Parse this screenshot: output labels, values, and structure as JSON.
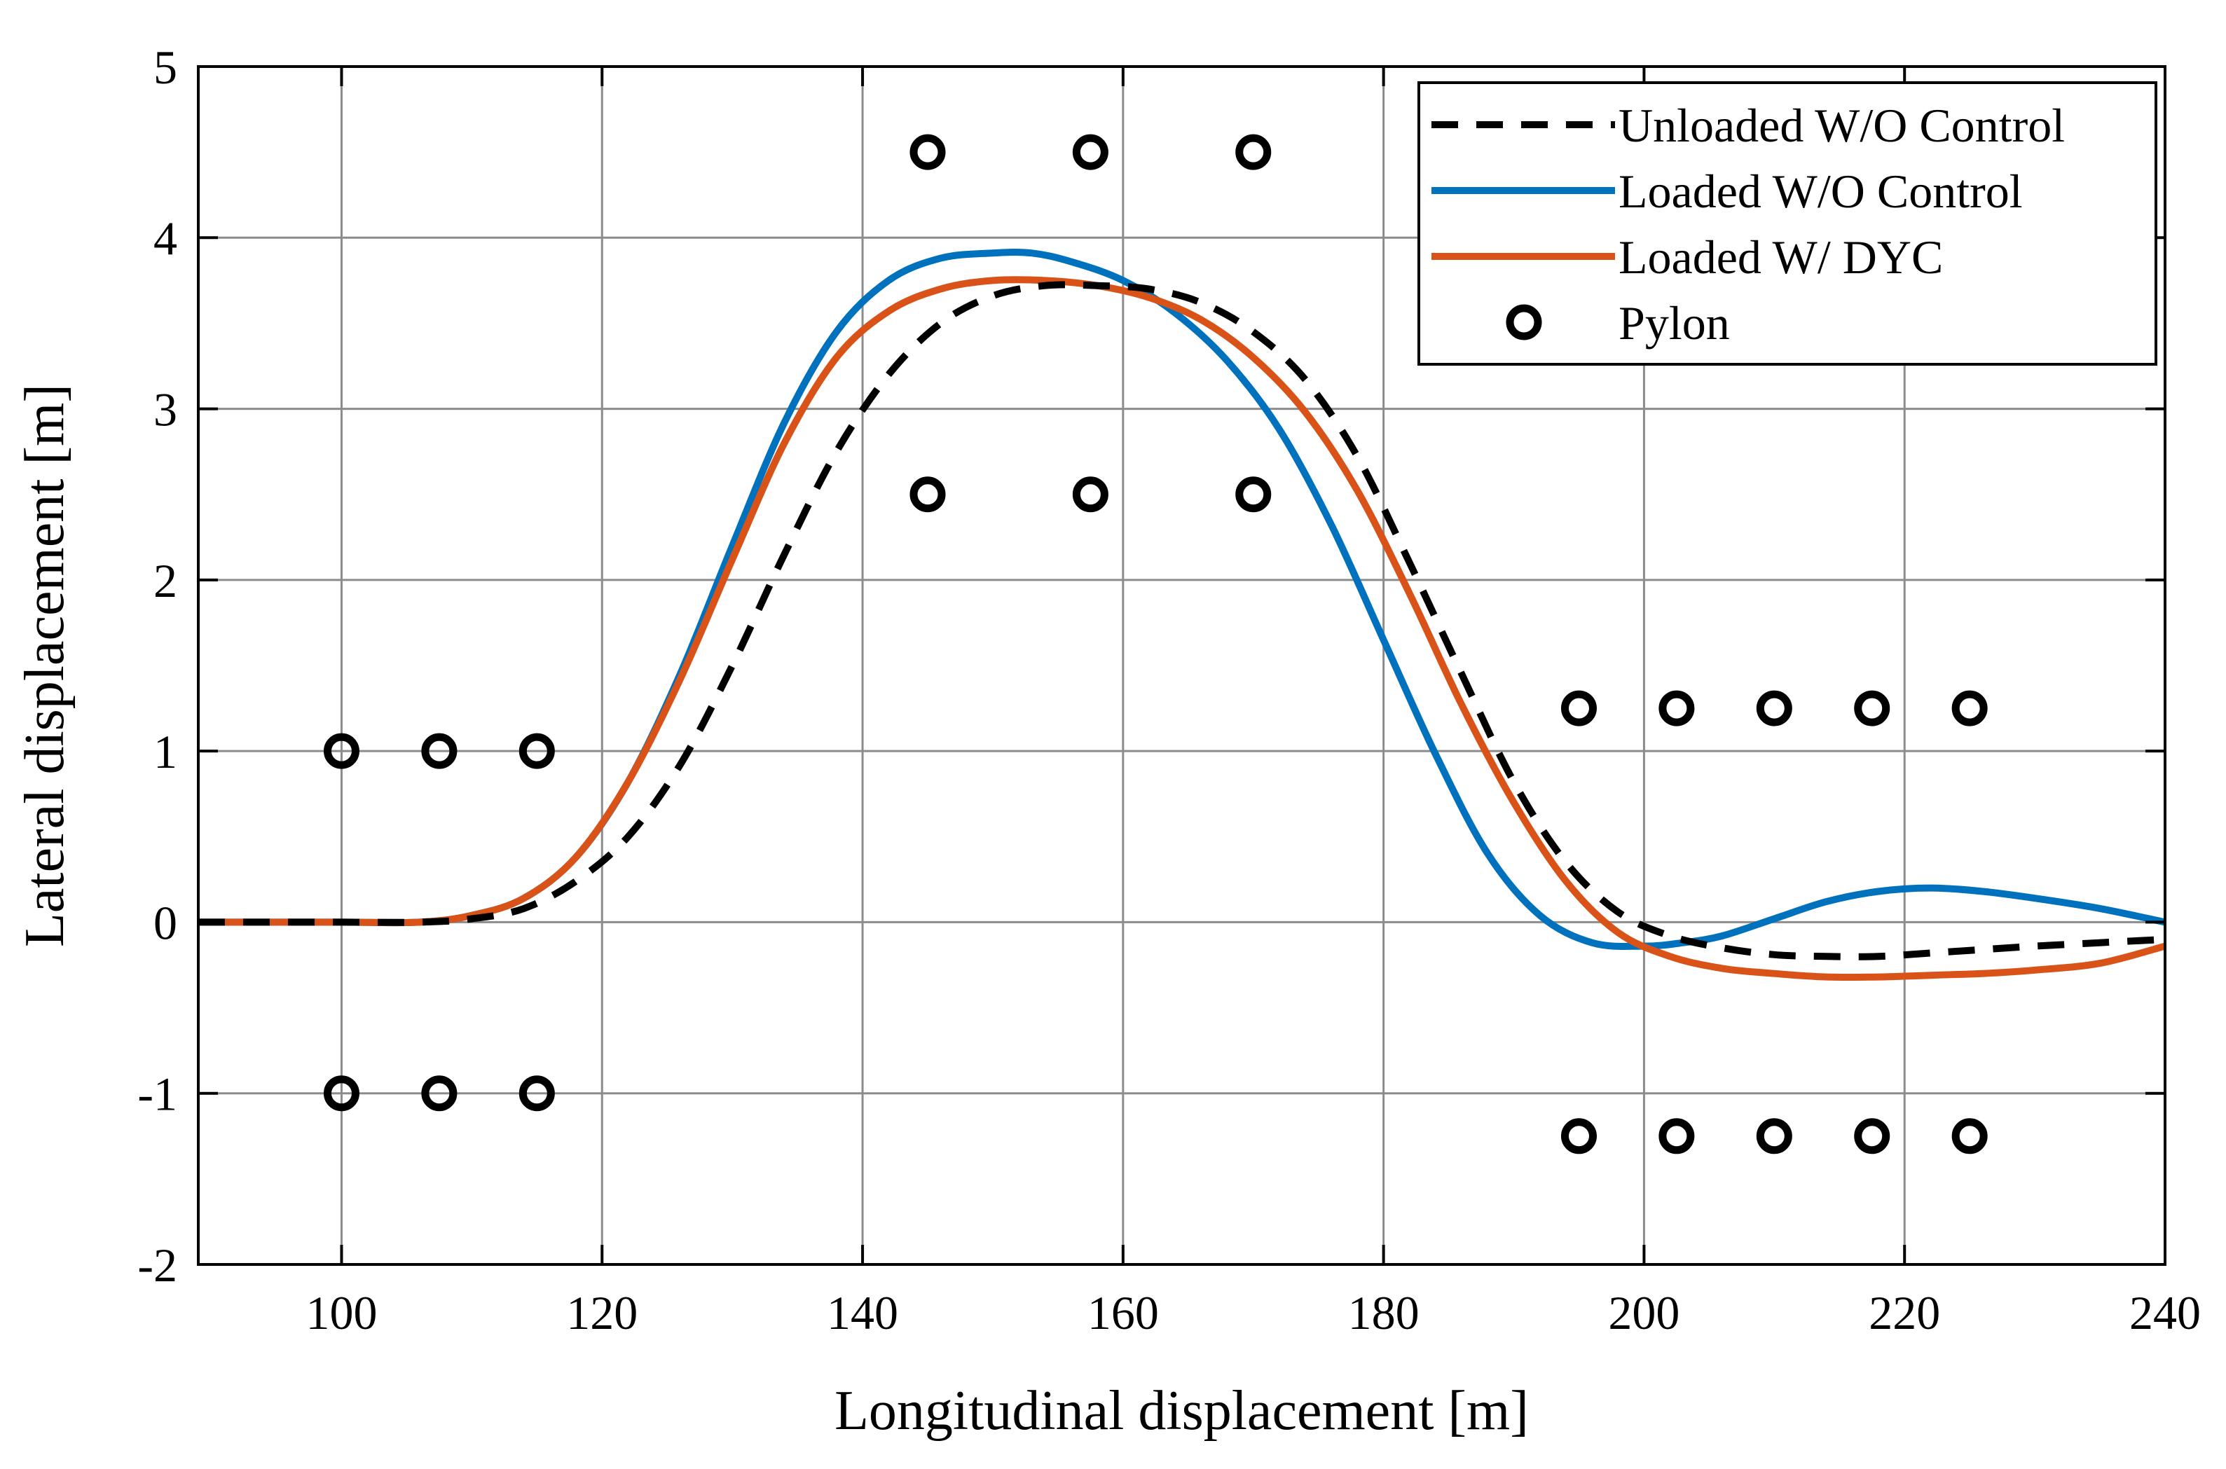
{
  "chart_data": {
    "type": "line",
    "title": "",
    "xlabel": "Longitudinal displacement [m]",
    "ylabel": "Lateral displacement [m]",
    "xlim": [
      89,
      240
    ],
    "ylim": [
      -2,
      5
    ],
    "xticks": [
      100,
      120,
      140,
      160,
      180,
      200,
      220,
      240
    ],
    "yticks": [
      -2,
      -1,
      0,
      1,
      2,
      3,
      4,
      5
    ],
    "grid": true,
    "legend_position": "top-right",
    "series": [
      {
        "name": "Unloaded W/O Control",
        "color": "#000000",
        "style": "dashed",
        "x": [
          89,
          100,
          106,
          110,
          114,
          118,
          122,
          126,
          130,
          134,
          138,
          142,
          146,
          150,
          154,
          158,
          162,
          166,
          170,
          174,
          178,
          182,
          186,
          190,
          194,
          198,
          202,
          206,
          210,
          214,
          218,
          222,
          226,
          230,
          235,
          240
        ],
        "y": [
          0,
          0,
          0,
          0.02,
          0.08,
          0.24,
          0.5,
          0.92,
          1.5,
          2.15,
          2.75,
          3.2,
          3.5,
          3.66,
          3.72,
          3.72,
          3.7,
          3.62,
          3.45,
          3.17,
          2.72,
          2.1,
          1.45,
          0.82,
          0.35,
          0.06,
          -0.08,
          -0.15,
          -0.19,
          -0.2,
          -0.2,
          -0.18,
          -0.16,
          -0.14,
          -0.12,
          -0.1
        ]
      },
      {
        "name": "Loaded W/O Control",
        "color": "#0072bd",
        "style": "solid",
        "x": [
          89,
          100,
          106,
          110,
          114,
          118,
          122,
          126,
          130,
          134,
          138,
          142,
          146,
          150,
          153,
          156,
          160,
          164,
          168,
          172,
          176,
          180,
          184,
          188,
          192,
          196,
          200,
          203,
          206,
          210,
          214,
          218,
          222,
          226,
          230,
          235,
          240
        ],
        "y": [
          0,
          0,
          0,
          0.04,
          0.14,
          0.38,
          0.82,
          1.45,
          2.2,
          2.92,
          3.45,
          3.75,
          3.88,
          3.91,
          3.91,
          3.86,
          3.75,
          3.56,
          3.28,
          2.88,
          2.32,
          1.65,
          0.98,
          0.4,
          0.04,
          -0.12,
          -0.14,
          -0.12,
          -0.08,
          0.02,
          0.12,
          0.18,
          0.2,
          0.18,
          0.14,
          0.08,
          0.0
        ]
      },
      {
        "name": "Loaded W/ DYC",
        "color": "#d95319",
        "style": "solid",
        "x": [
          89,
          100,
          106,
          110,
          114,
          118,
          122,
          126,
          130,
          134,
          138,
          142,
          146,
          150,
          154,
          158,
          162,
          166,
          170,
          174,
          178,
          182,
          186,
          190,
          194,
          198,
          202,
          206,
          210,
          214,
          218,
          222,
          226,
          230,
          235,
          240
        ],
        "y": [
          0,
          0,
          0,
          0.04,
          0.14,
          0.38,
          0.82,
          1.42,
          2.12,
          2.8,
          3.3,
          3.57,
          3.7,
          3.75,
          3.75,
          3.72,
          3.65,
          3.52,
          3.3,
          2.98,
          2.52,
          1.92,
          1.27,
          0.7,
          0.24,
          -0.06,
          -0.2,
          -0.27,
          -0.3,
          -0.32,
          -0.32,
          -0.31,
          -0.3,
          -0.28,
          -0.24,
          -0.14
        ]
      },
      {
        "name": "Pylon",
        "color": "#000000",
        "style": "markers",
        "x": [
          100,
          107.5,
          115,
          100,
          107.5,
          115,
          145,
          157.5,
          170,
          145,
          157.5,
          170,
          195,
          202.5,
          210,
          217.5,
          225,
          195,
          202.5,
          210,
          217.5,
          225
        ],
        "y": [
          1,
          1,
          1,
          -1,
          -1,
          -1,
          4.5,
          4.5,
          4.5,
          2.5,
          2.5,
          2.5,
          1.25,
          1.25,
          1.25,
          1.25,
          1.25,
          -1.25,
          -1.25,
          -1.25,
          -1.25,
          -1.25
        ]
      }
    ]
  }
}
